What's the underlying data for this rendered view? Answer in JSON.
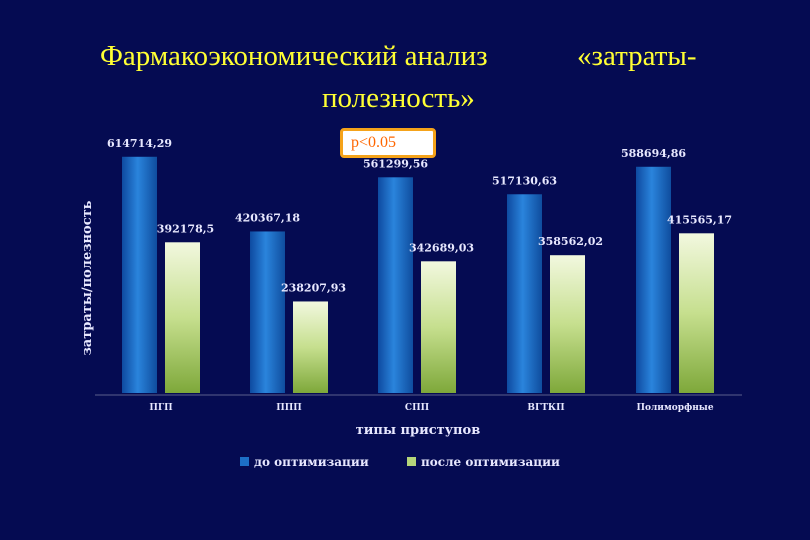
{
  "title_line1a": "Фармакоэкономический анализ",
  "title_line1b": "«затраты-",
  "title_line2": "полезность»",
  "p_value": "p<0.05",
  "chart_data": {
    "type": "bar",
    "xlabel": "типы приступов",
    "ylabel": "затраты/полезность",
    "categories": [
      "ПГП",
      "ППП",
      "СПП",
      "ВГТКП",
      "Полиморфные"
    ],
    "ylim": [
      0,
      700000
    ],
    "series": [
      {
        "name": "до оптимизации",
        "color": "#1d6fc7",
        "values": [
          614714.29,
          420367.18,
          561299.56,
          517130.63,
          588694.86
        ],
        "labels": [
          "614714,29",
          "420367,18",
          "561299,56",
          "517130,63",
          "588694,86"
        ]
      },
      {
        "name": "после оптимизации",
        "color": "#b5d57a",
        "values": [
          392178.5,
          238207.93,
          342689.03,
          358562.02,
          415565.17
        ],
        "labels": [
          "392178,5",
          "238207,93",
          "342689,03",
          "358562,02",
          "415565,17"
        ]
      }
    ],
    "legend_position": "bottom"
  }
}
